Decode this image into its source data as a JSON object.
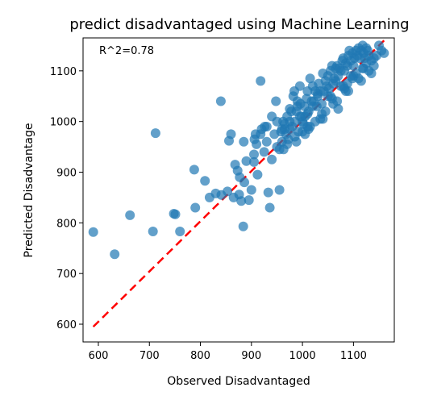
{
  "chart_data": {
    "type": "scatter",
    "title": "predict disadvantaged using Machine Learning",
    "xlabel": "Observed Disadvantaged",
    "ylabel": "Predicted Disadvantage",
    "annotation": "R^2=0.78",
    "xlim": [
      570,
      1180
    ],
    "ylim": [
      565,
      1165
    ],
    "xticks": [
      600,
      700,
      800,
      900,
      1000,
      1100
    ],
    "yticks": [
      600,
      700,
      800,
      900,
      1000,
      1100
    ],
    "point_color": "#1f77b4",
    "point_alpha": 0.7,
    "reference_line": {
      "x": [
        590,
        1160
      ],
      "y": [
        595,
        1160
      ],
      "color": "#ff0000",
      "style": "dashed"
    },
    "x": [
      590,
      632,
      662,
      707,
      712,
      748,
      751,
      760,
      788,
      790,
      809,
      818,
      830,
      840,
      841,
      853,
      856,
      860,
      865,
      868,
      873,
      876,
      877,
      880,
      884,
      885,
      886,
      890,
      895,
      900,
      905,
      906,
      908,
      910,
      912,
      918,
      920,
      925,
      926,
      930,
      933,
      936,
      940,
      945,
      948,
      950,
      955,
      958,
      960,
      962,
      963,
      965,
      968,
      970,
      972,
      975,
      978,
      980,
      982,
      984,
      985,
      988,
      990,
      992,
      995,
      996,
      998,
      1000,
      1002,
      1004,
      1005,
      1008,
      1010,
      1012,
      1015,
      1018,
      1020,
      1022,
      1025,
      1028,
      1030,
      1032,
      1035,
      1038,
      1040,
      1042,
      1045,
      1048,
      1050,
      1052,
      1055,
      1058,
      1060,
      1062,
      1065,
      1068,
      1070,
      1072,
      1075,
      1078,
      1080,
      1082,
      1085,
      1088,
      1090,
      1092,
      1095,
      1098,
      1100,
      1102,
      1105,
      1108,
      1110,
      1112,
      1115,
      1118,
      1120,
      1122,
      1125,
      1128,
      1130,
      1135,
      1140,
      1150,
      1155,
      1160,
      975,
      1010,
      1050,
      1080,
      1120,
      990,
      1030,
      1065,
      1095,
      1005,
      1040,
      1070,
      955,
      985,
      1015,
      1045,
      1085,
      1110,
      1130,
      940,
      970,
      1000,
      1025,
      1060,
      1090,
      1115,
      1140,
      905,
      930,
      960,
      995,
      1020,
      1055,
      1075,
      1100,
      1125,
      918,
      950,
      975,
      1010,
      1035,
      1068,
      1088,
      1105,
      1135,
      965,
      988,
      1012,
      1038,
      1058,
      1082,
      1098,
      1118,
      1145
    ],
    "y": [
      782,
      738,
      815,
      783,
      977,
      818,
      817,
      783,
      905,
      830,
      883,
      850,
      858,
      1040,
      855,
      862,
      962,
      975,
      850,
      915,
      903,
      856,
      890,
      843,
      793,
      960,
      880,
      922,
      845,
      865,
      920,
      965,
      975,
      955,
      895,
      1080,
      985,
      940,
      990,
      990,
      860,
      830,
      1010,
      975,
      1040,
      950,
      865,
      980,
      960,
      1000,
      945,
      985,
      975,
      1010,
      965,
      1000,
      1020,
      990,
      1050,
      1060,
      1000,
      960,
      1040,
      980,
      1070,
      1035,
      1010,
      1000,
      995,
      1030,
      1010,
      1045,
      1060,
      1020,
      1085,
      1040,
      1070,
      1040,
      1060,
      1030,
      1050,
      1075,
      1060,
      1035,
      1095,
      1060,
      1080,
      1070,
      1090,
      1065,
      1100,
      1110,
      1075,
      1085,
      1105,
      1110,
      1090,
      1105,
      1100,
      1120,
      1125,
      1100,
      1115,
      1110,
      1130,
      1140,
      1120,
      1135,
      1110,
      1125,
      1140,
      1130,
      1145,
      1125,
      1140,
      1150,
      1135,
      1125,
      1145,
      1140,
      1130,
      1095,
      1125,
      1150,
      1140,
      1135,
      985,
      1015,
      1050,
      1070,
      1105,
      1030,
      1055,
      1080,
      1090,
      975,
      1005,
      1025,
      945,
      970,
      990,
      1020,
      1060,
      1085,
      1100,
      925,
      955,
      980,
      1000,
      1035,
      1060,
      1080,
      1110,
      935,
      960,
      985,
      1010,
      1030,
      1050,
      1070,
      1090,
      1115,
      975,
      1000,
      1025,
      990,
      1005,
      1040,
      1075,
      1095,
      1120,
      995,
      1020,
      985,
      1015,
      1045,
      1065,
      1085,
      1105,
      1130
    ]
  }
}
